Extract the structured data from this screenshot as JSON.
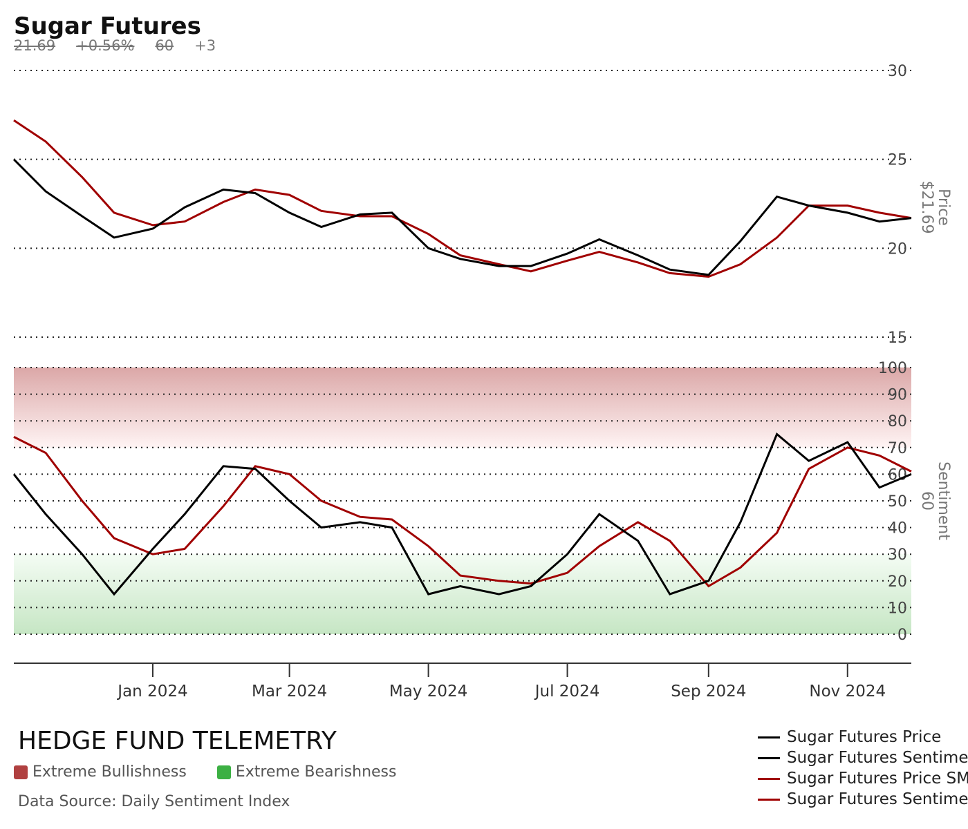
{
  "header": {
    "title": "Sugar Futures",
    "price": "21.69",
    "change": "+0.56%",
    "sentiment": "60",
    "sentiment_change": "+3"
  },
  "footer": {
    "brand": "HEDGE FUND TELEMETRY",
    "extreme_bull_label": "Extreme Bullishness",
    "extreme_bear_label": "Extreme Bearishness",
    "source": "Data Source: Daily Sentiment Index"
  },
  "colors": {
    "price_line": "#000000",
    "sentiment_line": "#000000",
    "sma_line": "#a00000",
    "extreme_bull": "#b04040",
    "extreme_bear": "#3cb043"
  },
  "chart_data": {
    "type": "line",
    "x_ticks": [
      "Jan 2024",
      "Mar 2024",
      "May 2024",
      "Jul 2024",
      "Sep 2024",
      "Nov 2024"
    ],
    "legend": [
      {
        "label": "Sugar Futures Price",
        "color": "#000000"
      },
      {
        "label": "Sugar Futures Sentiment",
        "color": "#000000"
      },
      {
        "label": "Sugar Futures Price SMA",
        "color": "#a00000"
      },
      {
        "label": "Sugar Futures Sentiment SMA",
        "color": "#a00000"
      }
    ],
    "price_panel": {
      "ylabel": "Price",
      "last_label": "$21.69",
      "ylim": [
        15,
        30
      ],
      "yticks": [
        15,
        20,
        25,
        30
      ],
      "x": [
        "2023-11-01",
        "2023-11-15",
        "2023-12-01",
        "2023-12-15",
        "2024-01-01",
        "2024-01-15",
        "2024-02-01",
        "2024-02-15",
        "2024-03-01",
        "2024-03-15",
        "2024-04-01",
        "2024-04-15",
        "2024-05-01",
        "2024-05-15",
        "2024-06-01",
        "2024-06-15",
        "2024-07-01",
        "2024-07-15",
        "2024-08-01",
        "2024-08-15",
        "2024-09-01",
        "2024-09-15",
        "2024-10-01",
        "2024-10-15",
        "2024-11-01",
        "2024-11-15",
        "2024-11-29"
      ],
      "price": [
        25.0,
        23.2,
        21.8,
        20.6,
        21.1,
        22.3,
        23.3,
        23.1,
        22.0,
        21.2,
        21.9,
        22.0,
        20.0,
        19.4,
        19.0,
        19.0,
        19.7,
        20.5,
        19.6,
        18.8,
        18.5,
        20.4,
        22.9,
        22.4,
        22.0,
        21.5,
        21.7
      ],
      "price_sma": [
        27.2,
        26.0,
        24.0,
        22.0,
        21.3,
        21.5,
        22.6,
        23.3,
        23.0,
        22.1,
        21.8,
        21.8,
        20.8,
        19.6,
        19.1,
        18.7,
        19.3,
        19.8,
        19.2,
        18.6,
        18.4,
        19.1,
        20.6,
        22.4,
        22.4,
        22.0,
        21.7
      ]
    },
    "sentiment_panel": {
      "ylabel": "Sentiment",
      "last_label": "60",
      "ylim": [
        0,
        100
      ],
      "yticks": [
        0,
        10,
        20,
        30,
        40,
        50,
        60,
        70,
        80,
        90,
        100
      ],
      "extreme_bull_range": [
        70,
        100
      ],
      "extreme_bear_range": [
        0,
        30
      ],
      "x": [
        "2023-11-01",
        "2023-11-15",
        "2023-12-01",
        "2023-12-15",
        "2024-01-01",
        "2024-01-15",
        "2024-02-01",
        "2024-02-15",
        "2024-03-01",
        "2024-03-15",
        "2024-04-01",
        "2024-04-15",
        "2024-05-01",
        "2024-05-15",
        "2024-06-01",
        "2024-06-15",
        "2024-07-01",
        "2024-07-15",
        "2024-08-01",
        "2024-08-15",
        "2024-09-01",
        "2024-09-15",
        "2024-10-01",
        "2024-10-15",
        "2024-11-01",
        "2024-11-15",
        "2024-11-29"
      ],
      "sentiment": [
        60,
        45,
        30,
        15,
        32,
        45,
        63,
        62,
        50,
        40,
        42,
        40,
        15,
        18,
        15,
        18,
        30,
        45,
        35,
        15,
        20,
        42,
        75,
        65,
        72,
        55,
        60
      ],
      "sentiment_sma": [
        74,
        68,
        50,
        36,
        30,
        32,
        48,
        63,
        60,
        50,
        44,
        43,
        33,
        22,
        20,
        19,
        23,
        33,
        42,
        35,
        18,
        25,
        38,
        62,
        70,
        67,
        61
      ]
    }
  }
}
